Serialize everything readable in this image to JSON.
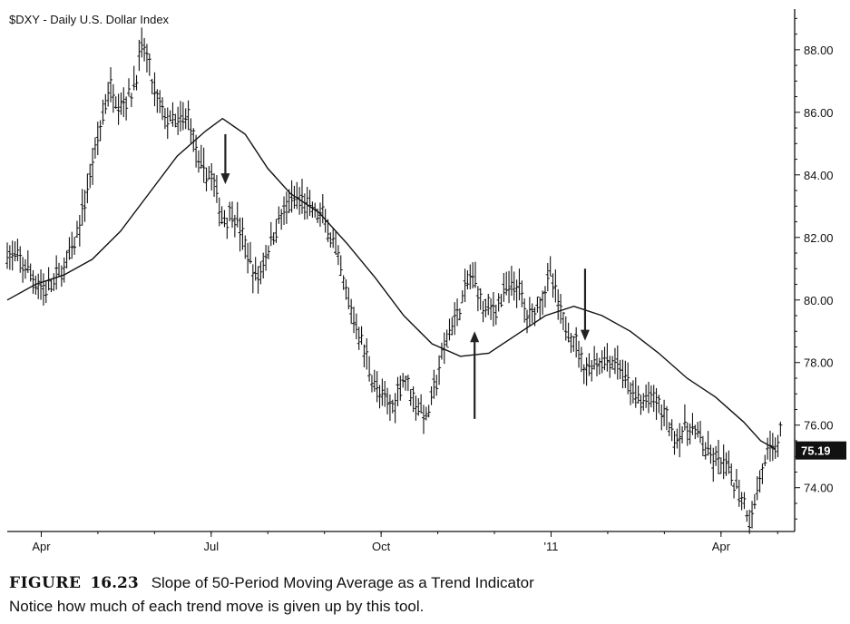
{
  "chart_data": {
    "type": "ohlc",
    "title": "$DXY - Daily  U.S. Dollar Index",
    "y_ticks": [
      "88.00",
      "86.00",
      "84.00",
      "82.00",
      "80.00",
      "78.00",
      "76.00",
      "74.00"
    ],
    "y_tick_values": [
      88,
      86,
      84,
      82,
      80,
      78,
      76,
      74
    ],
    "ylim": [
      72.6,
      89.3
    ],
    "x_ticks": [
      "Apr",
      "Jul",
      "Oct",
      "'11",
      "Apr"
    ],
    "x_tick_positions": [
      0.6,
      3.6,
      6.6,
      9.6,
      12.6
    ],
    "xlim": [
      0,
      13.9
    ],
    "last_value_label": "75.19",
    "last_value": 75.19,
    "axis_side": "right",
    "grid": false,
    "price_anchors": [
      [
        0.0,
        81.5
      ],
      [
        0.3,
        81.1
      ],
      [
        0.5,
        80.6
      ],
      [
        0.7,
        80.3
      ],
      [
        1.0,
        81.0
      ],
      [
        1.2,
        81.8
      ],
      [
        1.4,
        83.4
      ],
      [
        1.6,
        85.2
      ],
      [
        1.8,
        86.8
      ],
      [
        2.0,
        86.3
      ],
      [
        2.2,
        86.6
      ],
      [
        2.4,
        88.2
      ],
      [
        2.6,
        86.6
      ],
      [
        2.8,
        85.8
      ],
      [
        3.0,
        85.6
      ],
      [
        3.2,
        85.9
      ],
      [
        3.4,
        84.2
      ],
      [
        3.6,
        84.0
      ],
      [
        3.8,
        82.6
      ],
      [
        4.0,
        82.8
      ],
      [
        4.2,
        81.7
      ],
      [
        4.4,
        80.6
      ],
      [
        4.6,
        81.6
      ],
      [
        4.8,
        82.6
      ],
      [
        5.0,
        83.1
      ],
      [
        5.2,
        83.2
      ],
      [
        5.4,
        82.8
      ],
      [
        5.6,
        82.6
      ],
      [
        5.8,
        81.5
      ],
      [
        6.0,
        80.0
      ],
      [
        6.2,
        79.0
      ],
      [
        6.4,
        77.8
      ],
      [
        6.6,
        76.8
      ],
      [
        6.8,
        76.6
      ],
      [
        7.0,
        77.6
      ],
      [
        7.2,
        76.8
      ],
      [
        7.4,
        76.2
      ],
      [
        7.6,
        77.6
      ],
      [
        7.8,
        79.0
      ],
      [
        8.0,
        79.8
      ],
      [
        8.2,
        80.9
      ],
      [
        8.4,
        79.8
      ],
      [
        8.6,
        79.7
      ],
      [
        8.8,
        80.3
      ],
      [
        9.0,
        80.5
      ],
      [
        9.2,
        79.4
      ],
      [
        9.4,
        80.0
      ],
      [
        9.6,
        80.8
      ],
      [
        9.8,
        79.3
      ],
      [
        10.0,
        78.8
      ],
      [
        10.2,
        77.8
      ],
      [
        10.4,
        78.0
      ],
      [
        10.6,
        78.1
      ],
      [
        10.8,
        77.9
      ],
      [
        11.0,
        77.1
      ],
      [
        11.2,
        76.7
      ],
      [
        11.4,
        76.9
      ],
      [
        11.6,
        76.3
      ],
      [
        11.8,
        75.6
      ],
      [
        12.0,
        75.9
      ],
      [
        12.2,
        75.7
      ],
      [
        12.4,
        74.9
      ],
      [
        12.6,
        74.8
      ],
      [
        12.8,
        74.3
      ],
      [
        13.0,
        73.6
      ],
      [
        13.1,
        73.0
      ],
      [
        13.2,
        73.5
      ],
      [
        13.3,
        74.5
      ],
      [
        13.5,
        75.2
      ],
      [
        13.65,
        75.7
      ]
    ],
    "moving_average": {
      "name": "50-Period Moving Average",
      "points": [
        [
          0.0,
          80.0
        ],
        [
          0.5,
          80.5
        ],
        [
          1.0,
          80.8
        ],
        [
          1.5,
          81.3
        ],
        [
          2.0,
          82.2
        ],
        [
          2.5,
          83.4
        ],
        [
          3.0,
          84.6
        ],
        [
          3.5,
          85.4
        ],
        [
          3.8,
          85.8
        ],
        [
          4.2,
          85.3
        ],
        [
          4.6,
          84.2
        ],
        [
          5.0,
          83.4
        ],
        [
          5.5,
          82.8
        ],
        [
          6.0,
          81.8
        ],
        [
          6.5,
          80.7
        ],
        [
          7.0,
          79.5
        ],
        [
          7.5,
          78.6
        ],
        [
          8.0,
          78.2
        ],
        [
          8.5,
          78.3
        ],
        [
          9.0,
          78.9
        ],
        [
          9.5,
          79.5
        ],
        [
          10.0,
          79.8
        ],
        [
          10.5,
          79.5
        ],
        [
          11.0,
          79.0
        ],
        [
          11.5,
          78.3
        ],
        [
          12.0,
          77.5
        ],
        [
          12.5,
          76.9
        ],
        [
          13.0,
          76.1
        ],
        [
          13.3,
          75.5
        ],
        [
          13.55,
          75.25
        ]
      ]
    },
    "arrows": [
      {
        "direction": "down",
        "x": 3.85,
        "from": 85.3,
        "to": 83.7
      },
      {
        "direction": "up",
        "x": 8.25,
        "from": 76.2,
        "to": 79.0
      },
      {
        "direction": "down",
        "x": 10.2,
        "from": 81.0,
        "to": 78.7
      }
    ]
  },
  "caption": {
    "figure_label": "FIGURE",
    "figure_number": "16.23",
    "title": "Slope of 50-Period Moving Average as a Trend Indicator",
    "note": "Notice how much of each trend move is given up by this tool."
  }
}
